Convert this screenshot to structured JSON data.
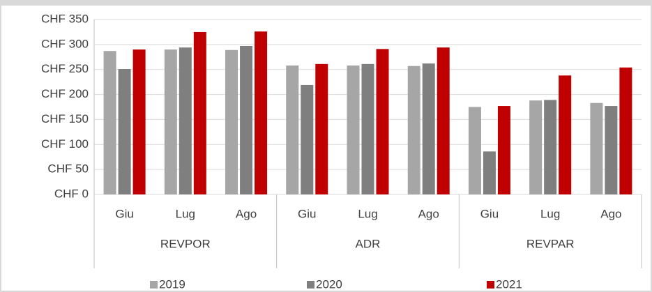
{
  "chart_data": {
    "type": "bar",
    "categories": [
      "Giu",
      "Lug",
      "Ago",
      "Giu",
      "Lug",
      "Ago",
      "Giu",
      "Lug",
      "Ago"
    ],
    "groups": [
      "REVPOR",
      "ADR",
      "REVPAR"
    ],
    "series": [
      {
        "name": "2019",
        "color": "#a6a6a6",
        "values": [
          287,
          290,
          289,
          258,
          258,
          257,
          175,
          188,
          183
        ]
      },
      {
        "name": "2020",
        "color": "#7f7f7f",
        "values": [
          251,
          294,
          297,
          219,
          261,
          262,
          86,
          189,
          177
        ]
      },
      {
        "name": "2021",
        "color": "#c00000",
        "values": [
          290,
          325,
          326,
          261,
          291,
          294,
          177,
          238,
          254
        ]
      }
    ],
    "ylim": [
      0,
      350
    ],
    "yticks": [
      {
        "value": 0,
        "label": "CHF 0"
      },
      {
        "value": 50,
        "label": "CHF 50"
      },
      {
        "value": 100,
        "label": "CHF 100"
      },
      {
        "value": 150,
        "label": "CHF 150"
      },
      {
        "value": 200,
        "label": "CHF 200"
      },
      {
        "value": 250,
        "label": "CHF 250"
      },
      {
        "value": 300,
        "label": "CHF 300"
      },
      {
        "value": 350,
        "label": "CHF 350"
      }
    ],
    "grid": true,
    "legend": "bottom"
  }
}
